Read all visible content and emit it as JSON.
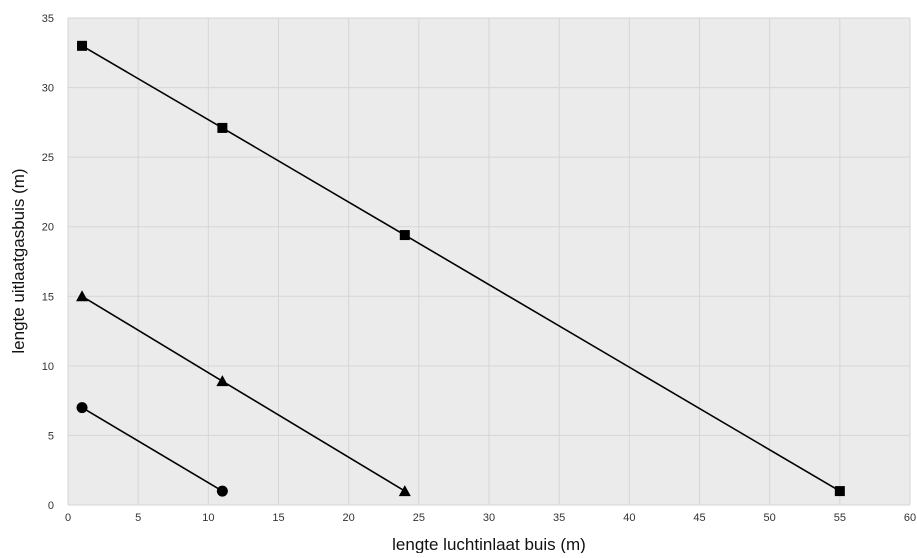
{
  "chart_data": {
    "type": "line",
    "title": "",
    "xlabel": "lengte luchtinlaat buis (m)",
    "ylabel": "lengte uitlaatgasbuis (m)",
    "xlim": [
      0,
      60
    ],
    "ylim": [
      0,
      35
    ],
    "xticks": [
      0,
      5,
      10,
      15,
      20,
      25,
      30,
      35,
      40,
      45,
      50,
      55,
      60
    ],
    "yticks": [
      0,
      5,
      10,
      15,
      20,
      25,
      30,
      35
    ],
    "grid": true,
    "legend": "none",
    "background_color": "#ebebeb",
    "grid_color": "#d6d6d6",
    "line_color": "#000000",
    "series": [
      {
        "marker": "square",
        "x": [
          1,
          11,
          24,
          55
        ],
        "y": [
          33,
          27.1,
          19.4,
          1
        ]
      },
      {
        "marker": "triangle",
        "x": [
          1,
          11,
          24
        ],
        "y": [
          15,
          8.9,
          1
        ]
      },
      {
        "marker": "circle",
        "x": [
          1,
          11
        ],
        "y": [
          7,
          1
        ]
      }
    ]
  }
}
